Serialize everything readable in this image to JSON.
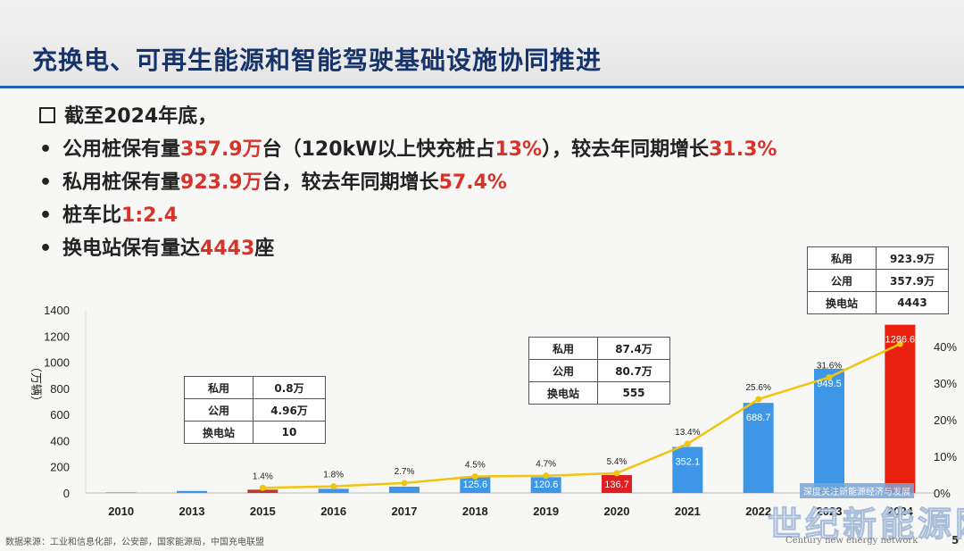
{
  "slide": {
    "title": "充换电、可再生能源和智能驾驶基础设施协同推进",
    "page_number": "5",
    "source": "数据来源：工业和信息化部，公安部，国家能源局，中国充电联盟"
  },
  "bullets": {
    "header": "截至2024年底，",
    "items": [
      {
        "parts": [
          {
            "text": "公用桩保有量",
            "hl": false
          },
          {
            "text": "357.9万",
            "hl": true
          },
          {
            "text": "台（120kW以上快充桩占",
            "hl": false
          },
          {
            "text": "13%",
            "hl": true
          },
          {
            "text": "），较去年同期增长",
            "hl": false
          },
          {
            "text": "31.3%",
            "hl": true
          }
        ]
      },
      {
        "parts": [
          {
            "text": "私用桩保有量",
            "hl": false
          },
          {
            "text": "923.9万",
            "hl": true
          },
          {
            "text": "台，较去年同期增长",
            "hl": false
          },
          {
            "text": "57.4%",
            "hl": true
          }
        ]
      },
      {
        "parts": [
          {
            "text": "桩车比",
            "hl": false
          },
          {
            "text": "1:2.4",
            "hl": true
          }
        ]
      },
      {
        "parts": [
          {
            "text": "换电站保有量达",
            "hl": false
          },
          {
            "text": "4443",
            "hl": true
          },
          {
            "text": "座",
            "hl": false
          }
        ]
      }
    ]
  },
  "tables": [
    {
      "rows": [
        [
          "私用",
          "0.8万"
        ],
        [
          "公用",
          "4.96万"
        ],
        [
          "换电站",
          "10"
        ]
      ]
    },
    {
      "rows": [
        [
          "私用",
          "87.4万"
        ],
        [
          "公用",
          "80.7万"
        ],
        [
          "换电站",
          "555"
        ]
      ]
    },
    {
      "rows": [
        [
          "私用",
          "923.9万"
        ],
        [
          "公用",
          "357.9万"
        ],
        [
          "换电站",
          "4443"
        ]
      ]
    }
  ],
  "chart_data": {
    "type": "bar",
    "categories": [
      "2010",
      "2013",
      "2015",
      "2016",
      "2017",
      "2018",
      "2019",
      "2020",
      "2021",
      "2022",
      "2023",
      "2024"
    ],
    "series": [
      {
        "values": [
          3,
          15,
          25,
          32,
          48,
          125.6,
          120.6,
          136.7,
          352.1,
          688.7,
          949.5,
          1286.6
        ],
        "labels": [
          "",
          "",
          "",
          "",
          "",
          "125.6",
          "120.6",
          "136.7",
          "352.1",
          "688.7",
          "949.5",
          "1286.6"
        ]
      },
      {
        "values": [
          null,
          null,
          1.4,
          1.8,
          2.7,
          4.5,
          4.7,
          5.4,
          13.4,
          25.6,
          31.6,
          40.7
        ],
        "labels": [
          "",
          "",
          "1.4%",
          "1.8%",
          "2.7%",
          "4.5%",
          "4.7%",
          "5.4%",
          "13.4%",
          "25.6%",
          "31.6%",
          ""
        ]
      }
    ],
    "ylabel": "（万辆）",
    "ylim": [
      0,
      1400
    ],
    "yticks": [
      "0",
      "200",
      "400",
      "600",
      "800",
      "1000",
      "1200",
      "1400"
    ],
    "y2lim": [
      0,
      50
    ],
    "y2ticks": [
      "0%",
      "10%",
      "20%",
      "30%",
      "40%",
      "%"
    ],
    "bar_colors": [
      "#c0392b",
      "#3d97e6",
      "#c0392b",
      "#3d97e6",
      "#3d97e6",
      "#3d97e6",
      "#3d97e6",
      "#e02020",
      "#3d97e6",
      "#3d97e6",
      "#3d97e6",
      "#e8200d"
    ],
    "line_color": "#f1c40f"
  },
  "watermark": {
    "tag": "深度关注新能源经济与发展",
    "cn": "世纪新能源网",
    "en": "Century new energy network"
  }
}
